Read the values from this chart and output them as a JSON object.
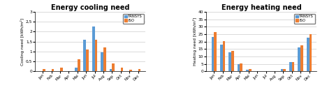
{
  "months": [
    "Jan",
    "Feb",
    "Mar",
    "Apr",
    "Mai",
    "Jun",
    "Jul",
    "Aug",
    "Sep",
    "Oct",
    "Nov",
    "Dec"
  ],
  "cooling_trnsys": [
    0.0,
    0.0,
    0.0,
    0.0,
    0.2,
    1.6,
    2.25,
    0.95,
    0.1,
    0.0,
    0.0,
    0.0
  ],
  "cooling_iso": [
    0.1,
    0.1,
    0.18,
    0.0,
    0.62,
    1.1,
    1.6,
    1.2,
    0.4,
    0.18,
    0.08,
    0.1
  ],
  "heating_trnsys": [
    23.0,
    18.0,
    13.0,
    5.0,
    1.0,
    0.0,
    0.0,
    0.0,
    1.5,
    6.0,
    16.0,
    22.5
  ],
  "heating_iso": [
    26.5,
    20.5,
    13.5,
    5.2,
    1.3,
    0.0,
    0.0,
    0.0,
    1.5,
    6.2,
    17.5,
    25.0
  ],
  "cooling_ylabel": "Cooling need [kWh/m²]",
  "heating_ylabel": "Heating need [kWh/m²]",
  "cooling_title": "Energy cooling need",
  "heating_title": "Energy heating need",
  "cooling_ylim": [
    0,
    3
  ],
  "heating_ylim": [
    0,
    40
  ],
  "cooling_yticks": [
    0,
    0.5,
    1,
    1.5,
    2,
    2.5,
    3
  ],
  "heating_yticks": [
    0,
    5,
    10,
    15,
    20,
    25,
    30,
    35,
    40
  ],
  "color_trnsys": "#5B9BD5",
  "color_iso": "#ED7D31",
  "legend_labels": [
    "TRNSYS",
    "ISO"
  ],
  "bg_color": "#FFFFFF"
}
